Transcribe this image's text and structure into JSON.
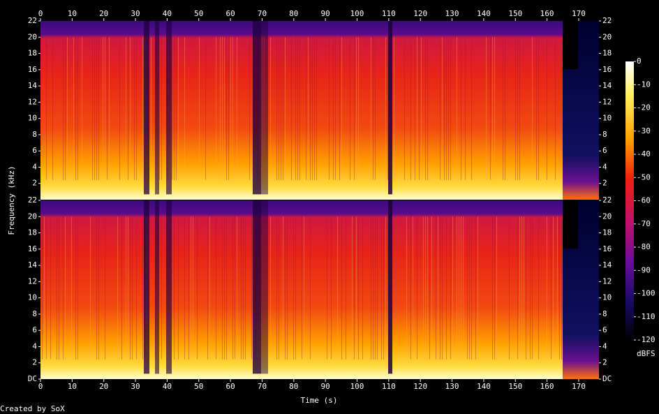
{
  "chart_data": {
    "type": "heatmap",
    "xlabel": "Time (s)",
    "ylabel": "Frequency (kHz)",
    "credit": "Created by SoX",
    "xlim": [
      0,
      176.4
    ],
    "xticks": [
      0,
      10,
      20,
      30,
      40,
      50,
      60,
      70,
      80,
      90,
      100,
      110,
      120,
      130,
      140,
      150,
      160,
      170
    ],
    "panels": [
      {
        "ylim": [
          0,
          22
        ],
        "yticks": [
          2,
          4,
          6,
          8,
          10,
          12,
          14,
          16,
          18,
          20,
          22
        ]
      },
      {
        "ylim": [
          0,
          22
        ],
        "yticks": [
          {
            "value": 0,
            "label": "DC"
          },
          2,
          4,
          6,
          8,
          10,
          12,
          14,
          16,
          18,
          20,
          22
        ]
      }
    ],
    "colorbar": {
      "label": "dBFS",
      "lim": [
        -120,
        0
      ],
      "ticks": [
        0,
        -10,
        -20,
        -30,
        -40,
        -50,
        -60,
        -70,
        -80,
        -90,
        -100,
        -110,
        -120
      ]
    }
  }
}
